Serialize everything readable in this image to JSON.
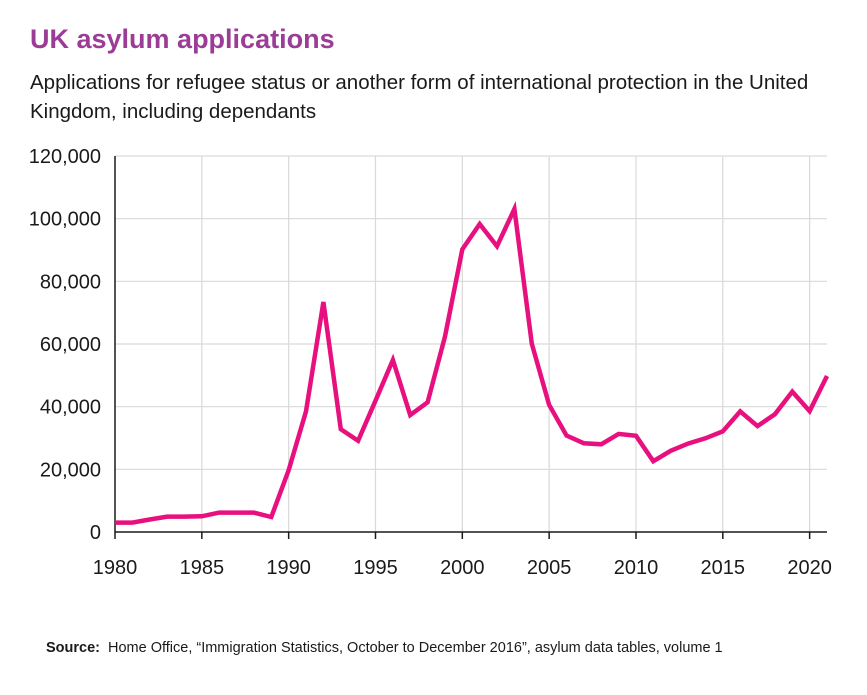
{
  "title": "UK asylum applications",
  "subtitle": "Applications for refugee status or another form of international protection in the United Kingdom, including dependants",
  "source": {
    "label": "Source:",
    "text": "Home Office, “Immigration Statistics, October to December 2016”, asylum data tables, volume 1"
  },
  "colors": {
    "title": "#9b3d97",
    "series": "#e8107f",
    "grid": "#d9d9d9",
    "axis": "#1a1a1a"
  },
  "chart_data": {
    "type": "line",
    "title": "UK asylum applications",
    "xlabel": "",
    "ylabel": "",
    "xlim": [
      1980,
      2021
    ],
    "ylim": [
      0,
      120000
    ],
    "grid": true,
    "x_ticks": [
      1980,
      1985,
      1990,
      1995,
      2000,
      2005,
      2010,
      2015,
      2020
    ],
    "y_ticks": [
      0,
      20000,
      40000,
      60000,
      80000,
      100000,
      120000
    ],
    "x_tick_labels": [
      "1980",
      "1985",
      "1990",
      "1995",
      "2000",
      "2005",
      "2010",
      "2015",
      "2020"
    ],
    "y_tick_labels": [
      "0",
      "20,000",
      "40,000",
      "60,000",
      "80,000",
      "100,000",
      "120,000"
    ],
    "series": [
      {
        "color": "#e8107f",
        "x": [
          1980,
          1981,
          1982,
          1983,
          1984,
          1985,
          1986,
          1987,
          1988,
          1989,
          1990,
          1991,
          1992,
          1993,
          1994,
          1995,
          1996,
          1997,
          1998,
          1999,
          2000,
          2001,
          2002,
          2003,
          2004,
          2005,
          2006,
          2007,
          2008,
          2009,
          2010,
          2011,
          2012,
          2013,
          2014,
          2015,
          2016,
          2017,
          2018,
          2019,
          2020,
          2021
        ],
        "y": [
          3000,
          3000,
          4000,
          4900,
          4900,
          5000,
          6200,
          6200,
          6200,
          4800,
          19800,
          38500,
          73400,
          32800,
          29100,
          41900,
          54900,
          37300,
          41400,
          62400,
          90200,
          98300,
          91200,
          103100,
          60100,
          40600,
          30800,
          28300,
          28000,
          31300,
          30700,
          22600,
          25900,
          28200,
          29900,
          32100,
          38500,
          33800,
          37600,
          44800,
          38600,
          49800
        ]
      }
    ]
  }
}
